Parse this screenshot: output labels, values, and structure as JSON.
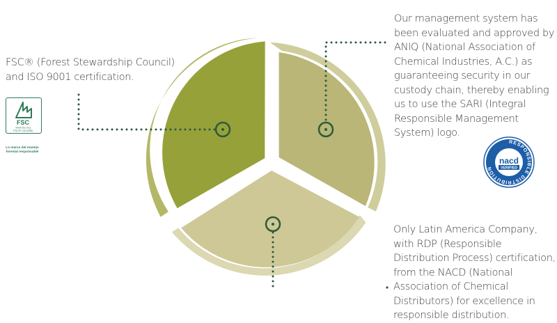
{
  "colors": {
    "segment_left": "#97a13a",
    "segment_left_ring": "#b5b768",
    "segment_right": "#b9b677",
    "segment_right_ring": "#cfcd9c",
    "segment_bottom": "#cdc896",
    "segment_bottom_ring": "#dbd8b2",
    "marker": "#2c5a3c",
    "fsc_green": "#2f7a57",
    "nacd_blue": "#1c5ea8"
  },
  "callouts": {
    "fsc": {
      "text": "FSC® (Forest Stewardship Council) and ISO 9001 certification."
    },
    "aniq": {
      "text": "Our management system has been evaluated and approved by ANIQ (National Association of Chemical Industries, A.C.) as guaranteeing security in our custody chain, thereby enabling us to use the SARI (Integral Responsible Management System) logo."
    },
    "nacd": {
      "text": "Only Latin America Company, with RDP (Responsible Distribution Process) certification, from the NACD (National Association of Chemical Distributors) for excellence in responsible distribution."
    }
  },
  "fsc_logo": {
    "name": "FSC",
    "url": "www.fsc.org",
    "code": "FSC® C011956",
    "tagline": "La marca del manejo forestal responsable"
  },
  "nacd_badge": {
    "ring_text": "RESPONSIBLE DISTRIBUTION",
    "name": "nacd",
    "status": "VERIFIED"
  }
}
